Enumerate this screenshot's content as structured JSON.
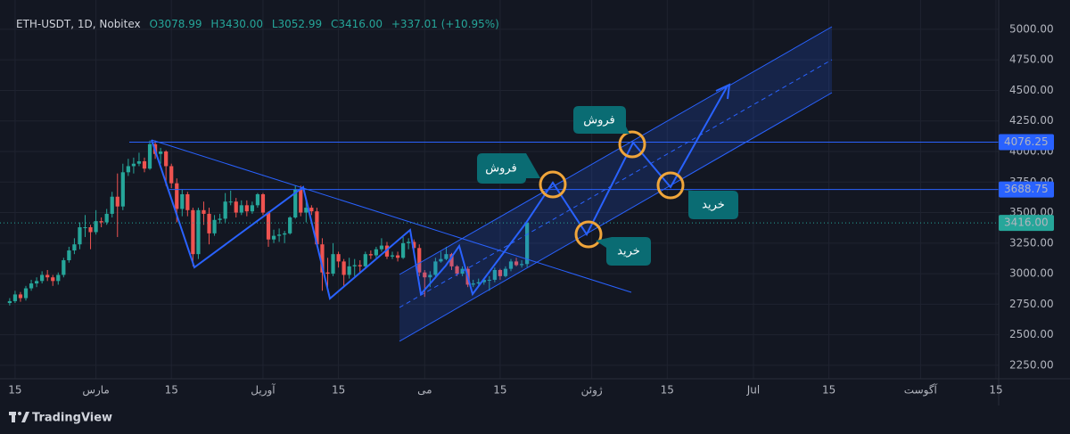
{
  "header": {
    "symbol": "ETH-USDT, 1D, Nobitex",
    "open": "O3078.99",
    "high": "H3430.00",
    "low": "L3052.99",
    "close": "C3416.00",
    "change": "+337.01 (+10.95%)"
  },
  "brand": "TradingView",
  "chart_data": {
    "type": "candlestick",
    "x": [
      45,
      46,
      47,
      48,
      49,
      50,
      51,
      52,
      53,
      54,
      55,
      56,
      57,
      58,
      59,
      60,
      61,
      62,
      63,
      64,
      65,
      66,
      67,
      68,
      69,
      70,
      71,
      72,
      73,
      74,
      75,
      76,
      77,
      78,
      79,
      80,
      81,
      82,
      83,
      84,
      85,
      86,
      87,
      88,
      89,
      90,
      91,
      92,
      93,
      94,
      95,
      96,
      97,
      98,
      99,
      100,
      101,
      102,
      103,
      104,
      105,
      106,
      107,
      108,
      109,
      110,
      111,
      112,
      113,
      114,
      115,
      116,
      117,
      118,
      119,
      120,
      121,
      122,
      123,
      124,
      125,
      126,
      127,
      128,
      129,
      130,
      131,
      132,
      133,
      134,
      135,
      136,
      137,
      138,
      139,
      140,
      141
    ],
    "open": [
      2760,
      2775,
      2830,
      2800,
      2880,
      2920,
      2940,
      2990,
      2970,
      2940,
      2990,
      3110,
      3190,
      3240,
      3380,
      3380,
      3340,
      3430,
      3420,
      3490,
      3630,
      3550,
      3830,
      3880,
      3900,
      3920,
      3860,
      4060,
      3980,
      4000,
      3880,
      3740,
      3530,
      3650,
      3520,
      3160,
      3520,
      3490,
      3330,
      3440,
      3450,
      3590,
      3590,
      3500,
      3560,
      3510,
      3560,
      3650,
      3500,
      3280,
      3310,
      3320,
      3330,
      3460,
      3690,
      3500,
      3540,
      3510,
      3240,
      3010,
      3000,
      3160,
      3100,
      2990,
      3060,
      3070,
      3060,
      3160,
      3150,
      3200,
      3230,
      3140,
      3150,
      3130,
      3250,
      3260,
      3210,
      3010,
      2970,
      2990,
      3100,
      3120,
      3160,
      3060,
      3000,
      3040,
      2910,
      2920,
      2930,
      2950,
      2950,
      3030,
      2980,
      3040,
      3100,
      3070,
      3078.99
    ],
    "high": [
      2800,
      2860,
      2850,
      2900,
      2950,
      2970,
      3020,
      3030,
      2990,
      3010,
      3130,
      3220,
      3290,
      3420,
      3480,
      3400,
      3520,
      3460,
      3530,
      3670,
      3820,
      3900,
      3940,
      3950,
      3990,
      3950,
      4090,
      4090,
      4030,
      4010,
      3900,
      3780,
      3690,
      3670,
      3540,
      3540,
      3590,
      3540,
      3480,
      3490,
      3660,
      3680,
      3620,
      3600,
      3600,
      3590,
      3660,
      3660,
      3510,
      3360,
      3370,
      3350,
      3470,
      3720,
      3720,
      3600,
      3560,
      3540,
      3290,
      3130,
      3250,
      3180,
      3120,
      3130,
      3120,
      3110,
      3180,
      3190,
      3220,
      3290,
      3260,
      3180,
      3180,
      3300,
      3290,
      3280,
      3240,
      3030,
      3020,
      3130,
      3180,
      3220,
      3170,
      3070,
      3060,
      3060,
      2950,
      2960,
      2960,
      2980,
      3050,
      3040,
      3060,
      3120,
      3130,
      3110,
      3430
    ],
    "low": [
      2740,
      2760,
      2770,
      2780,
      2860,
      2890,
      2920,
      2940,
      2900,
      2910,
      2970,
      3090,
      3160,
      3200,
      3300,
      3200,
      3320,
      3380,
      3400,
      3460,
      3300,
      3520,
      3800,
      3820,
      3880,
      3830,
      3850,
      3940,
      3900,
      3720,
      3700,
      3420,
      3470,
      3470,
      3060,
      3120,
      3400,
      3240,
      3310,
      3410,
      3420,
      3560,
      3460,
      3480,
      3470,
      3490,
      3540,
      3480,
      3220,
      3250,
      3260,
      3250,
      3320,
      3450,
      3470,
      3420,
      3480,
      3220,
      2860,
      2880,
      2980,
      3050,
      2900,
      2960,
      2980,
      3010,
      3040,
      3120,
      3130,
      3180,
      3120,
      3120,
      3100,
      3120,
      3200,
      3180,
      2980,
      2810,
      2890,
      2960,
      3090,
      3110,
      3030,
      2980,
      2980,
      2890,
      2890,
      2900,
      2910,
      2860,
      2930,
      2950,
      2970,
      3020,
      3060,
      3050,
      3052.99
    ],
    "close": [
      2775,
      2830,
      2800,
      2880,
      2920,
      2940,
      2990,
      2970,
      2940,
      2990,
      3110,
      3190,
      3240,
      3380,
      3380,
      3340,
      3430,
      3420,
      3490,
      3630,
      3550,
      3830,
      3880,
      3900,
      3920,
      3860,
      4060,
      3980,
      4000,
      3880,
      3740,
      3530,
      3650,
      3520,
      3160,
      3520,
      3490,
      3330,
      3440,
      3450,
      3590,
      3590,
      3500,
      3560,
      3510,
      3560,
      3650,
      3500,
      3280,
      3310,
      3320,
      3330,
      3460,
      3690,
      3500,
      3540,
      3510,
      3240,
      3010,
      3000,
      3160,
      3100,
      2990,
      3060,
      3070,
      3060,
      3160,
      3150,
      3200,
      3230,
      3140,
      3150,
      3130,
      3250,
      3260,
      3210,
      3010,
      2970,
      2990,
      3100,
      3120,
      3160,
      3060,
      3000,
      3040,
      2910,
      2920,
      2930,
      2950,
      2950,
      3030,
      2980,
      3040,
      3100,
      3070,
      3079,
      3416
    ],
    "up_color": "#26a69a",
    "down_color": "#ef5350",
    "xlim": [
      43.2,
      228.5
    ],
    "xticks": [
      {
        "value": 46,
        "label": "15"
      },
      {
        "value": 61,
        "label": "مارس"
      },
      {
        "value": 75,
        "label": "15"
      },
      {
        "value": 92,
        "label": "آوریل"
      },
      {
        "value": 106,
        "label": "15"
      },
      {
        "value": 122,
        "label": "می"
      },
      {
        "value": 136,
        "label": "15"
      },
      {
        "value": 153,
        "label": "ژوئن"
      },
      {
        "value": 167,
        "label": "15"
      },
      {
        "value": 183,
        "label": "Jul"
      },
      {
        "value": 197,
        "label": "15"
      },
      {
        "value": 214,
        "label": "آگوست"
      },
      {
        "value": 228,
        "label": "15"
      }
    ],
    "ylim": [
      2140,
      5240
    ],
    "yticks": [
      {
        "value": 2250,
        "label": "2250.00"
      },
      {
        "value": 2500,
        "label": "2500.00"
      },
      {
        "value": 2750,
        "label": "2750.00"
      },
      {
        "value": 3000,
        "label": "3000.00"
      },
      {
        "value": 3250,
        "label": "3250.00"
      },
      {
        "value": 3500,
        "label": "3500.00"
      },
      {
        "value": 3750,
        "label": "3750.00"
      },
      {
        "value": 4000,
        "label": "4000.00"
      },
      {
        "value": 4250,
        "label": "4250.00"
      },
      {
        "value": 4500,
        "label": "4500.00"
      },
      {
        "value": 4750,
        "label": "4750.00"
      },
      {
        "value": 5000,
        "label": "5000.00"
      }
    ],
    "grid": true,
    "hlines": [
      {
        "value": 4076.25,
        "label": "4076.25"
      },
      {
        "value": 3688.75,
        "label": "3688.75"
      }
    ],
    "last_price": {
      "value": 3416,
      "label": "3416.00"
    },
    "annotations": [
      "فروش",
      "فروش",
      "خرید",
      "خرید"
    ]
  }
}
